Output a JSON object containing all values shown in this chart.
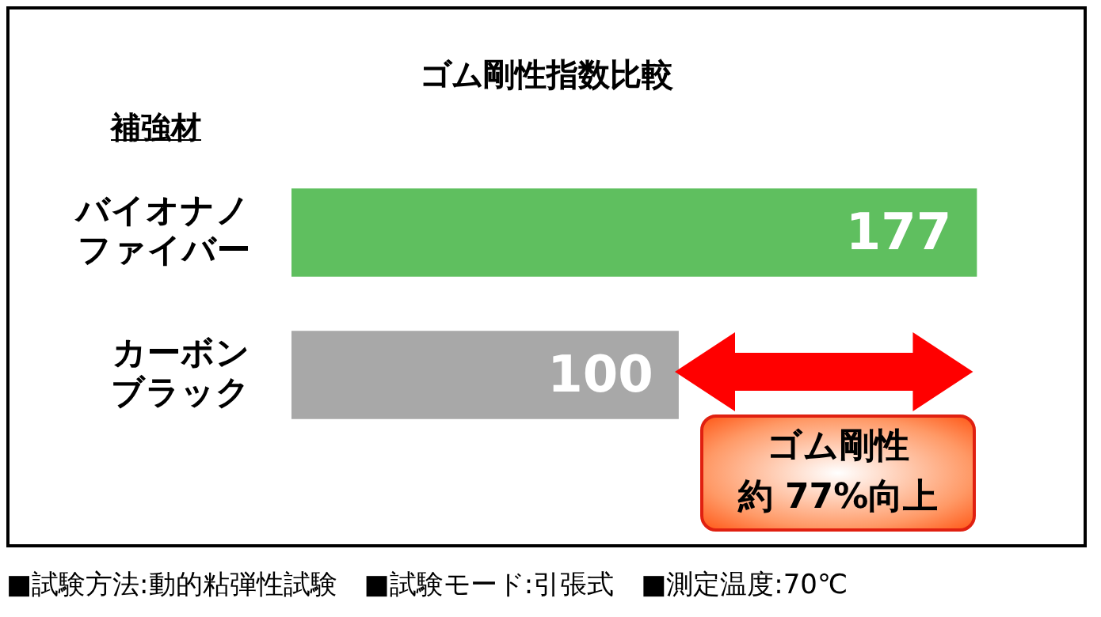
{
  "chart_data": {
    "type": "bar",
    "orientation": "horizontal",
    "title": "ゴム剛性指数比較",
    "ylabel": "補強材",
    "categories": [
      "バイオナノファイバー",
      "カーボンブラック"
    ],
    "values": [
      177,
      100
    ],
    "colors": [
      "#5fbf5f",
      "#a8a8a8"
    ],
    "data_labels": true,
    "annotations": [
      "ゴム剛性",
      "約 77%向上",
      "■試験方法:動的粘弾性試験　■試験モード:引張式　■測定温度:70℃"
    ]
  }
}
